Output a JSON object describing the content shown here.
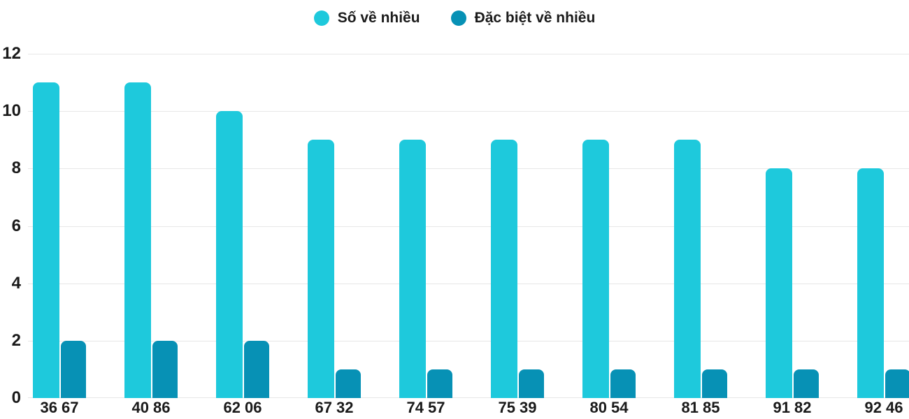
{
  "chart_data": {
    "type": "bar",
    "title": "",
    "categories": [
      "36 67",
      "40 86",
      "62 06",
      "67 32",
      "74 57",
      "75 39",
      "80 54",
      "81 85",
      "91 82",
      "92 46"
    ],
    "series": [
      {
        "name": "Số về nhiều",
        "color": "#1EC9DC",
        "values": [
          11,
          11,
          10,
          9,
          9,
          9,
          9,
          9,
          8,
          8
        ]
      },
      {
        "name": "Đặc biệt về nhiều",
        "color": "#0791B5",
        "values": [
          2,
          2,
          2,
          1,
          1,
          1,
          1,
          1,
          1,
          1
        ]
      }
    ],
    "xlabel": "",
    "ylabel": "",
    "ylim": [
      0,
      12
    ],
    "yticks": [
      0,
      2,
      4,
      6,
      8,
      10,
      12
    ],
    "grid": true,
    "legend_position": "top-center"
  },
  "colors": {
    "series_primary": "#1EC9DC",
    "series_special": "#0791B5",
    "gridline": "#E7E7E7",
    "text": "#1A1A1A",
    "background": "#FFFFFF"
  }
}
